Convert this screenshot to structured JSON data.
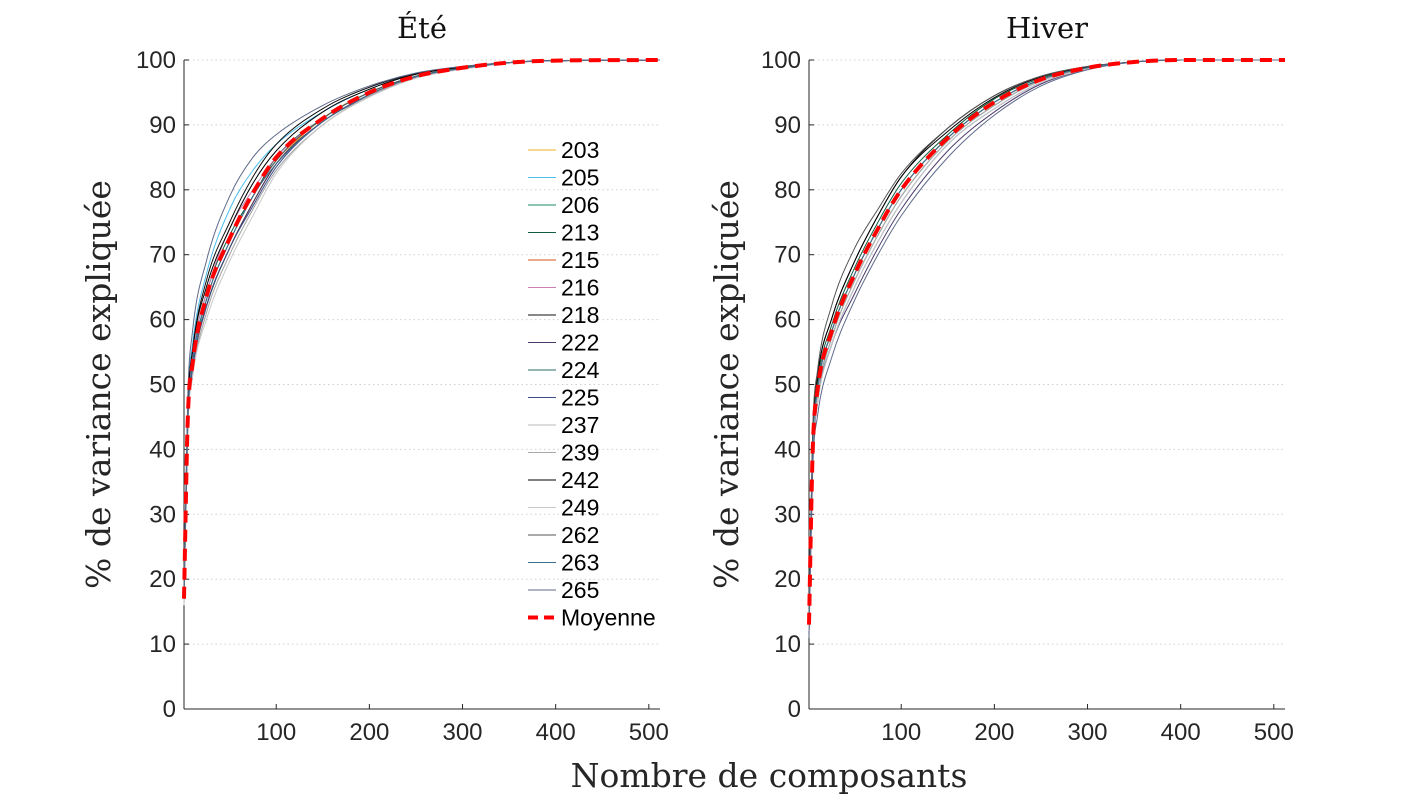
{
  "figure": {
    "xlabel": "Nombre de composants",
    "ylabel": "% de variance expliquée"
  },
  "chart_data": [
    {
      "type": "line",
      "title": "Été",
      "xlabel": "Nombre de composants",
      "ylabel": "% de variance expliquée",
      "xlim": [
        1,
        512
      ],
      "ylim": [
        0,
        100
      ],
      "xticks": [
        100,
        200,
        300,
        400,
        500
      ],
      "yticks": [
        0,
        10,
        20,
        30,
        40,
        50,
        60,
        70,
        80,
        90,
        100
      ],
      "grid": "y-dotted",
      "legend": "inside-right",
      "curve_model": {
        "form": "saturating",
        "x": [
          1,
          5,
          10,
          25,
          50,
          75,
          100,
          150,
          200,
          250,
          300,
          350,
          400,
          512
        ],
        "note": "values read per series below"
      },
      "series": [
        {
          "name": "203",
          "color": "#EDB120",
          "values": [
            17,
            44,
            52,
            62,
            71,
            78,
            84,
            91,
            95,
            97.5,
            98.8,
            99.6,
            99.9,
            100
          ]
        },
        {
          "name": "205",
          "color": "#4DBEEE",
          "values": [
            18,
            47,
            56,
            67,
            77,
            83,
            87,
            92,
            95.5,
            97.8,
            98.9,
            99.6,
            99.9,
            100
          ]
        },
        {
          "name": "206",
          "color": "#1A8A6A",
          "values": [
            17,
            44,
            53,
            62,
            71,
            78,
            84,
            90.5,
            94.5,
            97.3,
            98.7,
            99.6,
            99.9,
            100
          ]
        },
        {
          "name": "213",
          "color": "#0E5E3F",
          "values": [
            17,
            45,
            54,
            64,
            73,
            79,
            85,
            91,
            95,
            97.5,
            98.8,
            99.6,
            99.9,
            100
          ]
        },
        {
          "name": "215",
          "color": "#D95319",
          "values": [
            17,
            44,
            52,
            62,
            71,
            78,
            84,
            90.5,
            94.6,
            97.4,
            98.7,
            99.6,
            99.9,
            100
          ]
        },
        {
          "name": "216",
          "color": "#CC7FB0",
          "values": [
            17,
            45,
            54,
            64,
            74,
            80,
            85,
            91,
            95,
            97.5,
            98.8,
            99.6,
            99.9,
            100
          ]
        },
        {
          "name": "218",
          "color": "#111111",
          "values": [
            18,
            46,
            55,
            66,
            75,
            82,
            87,
            92.5,
            95.8,
            97.9,
            99,
            99.6,
            99.9,
            100
          ]
        },
        {
          "name": "222",
          "color": "#4B3B6B",
          "values": [
            17,
            44,
            52,
            62,
            71,
            78,
            84,
            90.5,
            94.5,
            97.3,
            98.7,
            99.6,
            99.9,
            100
          ]
        },
        {
          "name": "224",
          "color": "#2E6E6E",
          "values": [
            17,
            44,
            53,
            63,
            72,
            79,
            84.5,
            91,
            95,
            97.5,
            98.8,
            99.6,
            99.9,
            100
          ]
        },
        {
          "name": "225",
          "color": "#3C4E8A",
          "values": [
            17,
            44,
            52,
            62,
            71,
            77.5,
            83.5,
            90.5,
            94.6,
            97.4,
            98.7,
            99.6,
            99.9,
            100
          ]
        },
        {
          "name": "237",
          "color": "#B8B8B8",
          "values": [
            16,
            43,
            51,
            61,
            70,
            77,
            83,
            90,
            94.3,
            97.2,
            98.6,
            99.5,
            99.9,
            100
          ]
        },
        {
          "name": "239",
          "color": "#A9A9A9",
          "values": [
            16,
            43,
            51,
            61,
            70,
            77,
            83,
            90,
            94.5,
            97.3,
            98.7,
            99.6,
            99.9,
            100
          ]
        },
        {
          "name": "242",
          "color": "#000000",
          "values": [
            18,
            46,
            55,
            65,
            74,
            81,
            86,
            92,
            95.5,
            97.8,
            98.9,
            99.6,
            99.9,
            100
          ]
        },
        {
          "name": "249",
          "color": "#C8C8C8",
          "values": [
            16,
            43,
            51,
            60,
            69,
            76,
            82.5,
            90,
            94.3,
            97.2,
            98.6,
            99.5,
            99.9,
            100
          ]
        },
        {
          "name": "262",
          "color": "#555555",
          "values": [
            17,
            44,
            53,
            63,
            72,
            79,
            84.5,
            91,
            95,
            97.5,
            98.8,
            99.6,
            99.9,
            100
          ]
        },
        {
          "name": "263",
          "color": "#3F6E8F",
          "values": [
            17,
            44,
            53,
            63,
            72,
            79,
            84,
            90.5,
            94.7,
            97.4,
            98.7,
            99.6,
            99.9,
            100
          ]
        },
        {
          "name": "265",
          "color": "#5F6A8A",
          "values": [
            19,
            48,
            58,
            69,
            79,
            85,
            88.5,
            93,
            96,
            98,
            99,
            99.6,
            99.9,
            100
          ]
        },
        {
          "name": "Moyenne",
          "color": "#FF0000",
          "dashed": true,
          "values": [
            17,
            44.5,
            53,
            63.5,
            72.5,
            79.5,
            85,
            91,
            95,
            97.5,
            98.8,
            99.6,
            99.9,
            100
          ]
        }
      ]
    },
    {
      "type": "line",
      "title": "Hiver",
      "xlabel": "Nombre de composants",
      "ylabel": "% de variance expliquée",
      "xlim": [
        1,
        512
      ],
      "ylim": [
        0,
        100
      ],
      "xticks": [
        100,
        200,
        300,
        400,
        500
      ],
      "yticks": [
        0,
        10,
        20,
        30,
        40,
        50,
        60,
        70,
        80,
        90,
        100
      ],
      "grid": "y-dotted",
      "legend": "none",
      "curve_model": {
        "form": "saturating",
        "x": [
          1,
          5,
          10,
          25,
          50,
          75,
          100,
          150,
          200,
          250,
          300,
          350,
          400,
          512
        ],
        "note": "values read per series below"
      },
      "series": [
        {
          "name": "203",
          "color": "#EDB120",
          "values": [
            13,
            40,
            49,
            58,
            67,
            74,
            80,
            88,
            93.5,
            97,
            98.8,
            99.7,
            100,
            100
          ]
        },
        {
          "name": "205",
          "color": "#4DBEEE",
          "values": [
            13,
            40,
            49,
            58,
            67,
            74,
            80,
            88,
            93.5,
            97,
            98.8,
            99.7,
            100,
            100
          ]
        },
        {
          "name": "206",
          "color": "#1A8A6A",
          "values": [
            13,
            40,
            48,
            57,
            66,
            73,
            79,
            87.5,
            93,
            96.8,
            98.7,
            99.7,
            100,
            100
          ]
        },
        {
          "name": "213",
          "color": "#0E5E3F",
          "values": [
            13,
            41,
            50,
            59,
            68,
            75,
            81,
            88.5,
            94,
            97.2,
            98.9,
            99.7,
            100,
            100
          ]
        },
        {
          "name": "215",
          "color": "#D95319",
          "values": [
            13,
            40,
            49,
            58,
            67,
            74,
            80,
            88,
            93.5,
            97,
            98.8,
            99.7,
            100,
            100
          ]
        },
        {
          "name": "216",
          "color": "#CC7FB0",
          "values": [
            13,
            40,
            49,
            58,
            67,
            74,
            80,
            88,
            93.5,
            97,
            98.8,
            99.7,
            100,
            100
          ]
        },
        {
          "name": "218",
          "color": "#111111",
          "values": [
            14,
            42,
            51,
            60,
            69,
            76,
            82,
            89.5,
            94.5,
            97.5,
            99,
            99.7,
            100,
            100
          ]
        },
        {
          "name": "222",
          "color": "#4B3B6B",
          "values": [
            12,
            38,
            47,
            56,
            64,
            71,
            77,
            86,
            92,
            96.3,
            98.6,
            99.7,
            100,
            100
          ]
        },
        {
          "name": "224",
          "color": "#2E6E6E",
          "values": [
            13,
            40,
            49,
            58,
            67,
            74,
            80,
            88,
            93.5,
            97,
            98.8,
            99.7,
            100,
            100
          ]
        },
        {
          "name": "225",
          "color": "#3C4E8A",
          "values": [
            12,
            39,
            47,
            56,
            65,
            72,
            78,
            87,
            92.5,
            96.5,
            98.6,
            99.7,
            100,
            100
          ]
        },
        {
          "name": "237",
          "color": "#B8B8B8",
          "values": [
            12,
            39,
            48,
            57,
            66,
            73,
            79,
            87.5,
            93,
            96.8,
            98.7,
            99.7,
            100,
            100
          ]
        },
        {
          "name": "239",
          "color": "#A9A9A9",
          "values": [
            12,
            39,
            48,
            57,
            66,
            73,
            79,
            87.5,
            93,
            96.8,
            98.7,
            99.7,
            100,
            100
          ]
        },
        {
          "name": "242",
          "color": "#000000",
          "values": [
            14,
            42,
            51,
            60,
            69,
            76,
            82,
            89,
            94.2,
            97.4,
            98.9,
            99.7,
            100,
            100
          ]
        },
        {
          "name": "249",
          "color": "#C8C8C8",
          "values": [
            12,
            39,
            47,
            56,
            65,
            72,
            78,
            87,
            92.5,
            96.5,
            98.6,
            99.7,
            100,
            100
          ]
        },
        {
          "name": "262",
          "color": "#555555",
          "values": [
            14,
            43,
            52,
            62,
            71,
            77,
            82.5,
            89.5,
            94.5,
            97.5,
            99,
            99.7,
            100,
            100
          ]
        },
        {
          "name": "263",
          "color": "#3F6E8F",
          "values": [
            13,
            40,
            49,
            58,
            67,
            74,
            80,
            88,
            93.5,
            97,
            98.8,
            99.7,
            100,
            100
          ]
        },
        {
          "name": "265",
          "color": "#5F6A8A",
          "values": [
            11,
            37,
            45,
            54,
            63,
            70,
            76,
            85,
            91.5,
            96,
            98.5,
            99.7,
            100,
            100
          ]
        },
        {
          "name": "Moyenne",
          "color": "#FF0000",
          "dashed": true,
          "values": [
            13,
            40,
            49,
            58,
            67,
            74,
            80,
            88,
            93.5,
            97,
            98.8,
            99.7,
            100,
            100
          ]
        }
      ]
    }
  ]
}
